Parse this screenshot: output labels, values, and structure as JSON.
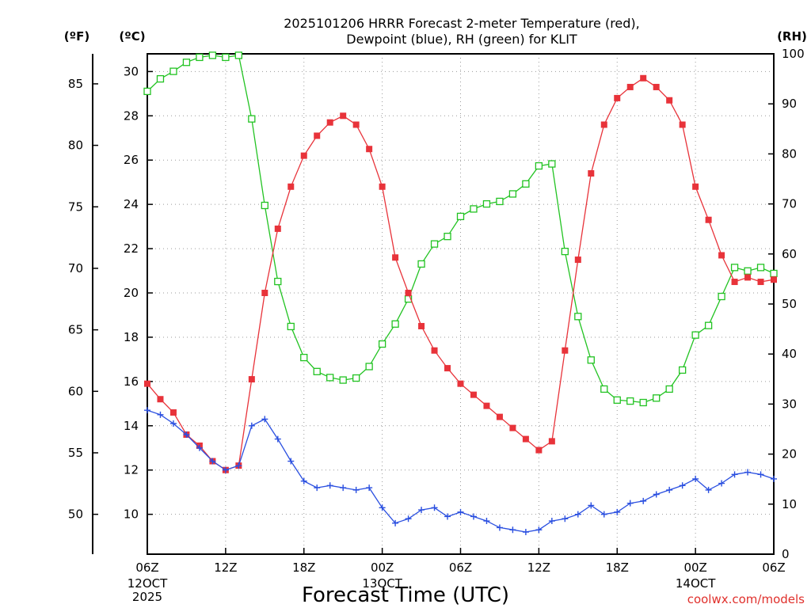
{
  "chart_data": {
    "type": "line",
    "title_line1": "2025101206 HRRR Forecast 2-meter Temperature (red),",
    "title_line2": "Dewpoint (blue), RH (green) for KLIT",
    "xlabel": "Forecast Time (UTC)",
    "credit": "coolwx.com/models",
    "units": {
      "fahrenheit": "(ºF)",
      "celsius": "(ºC)",
      "rh": "(RH)"
    },
    "x_hours_range": [
      0,
      48
    ],
    "celsius_range": [
      8.2,
      30.8
    ],
    "rh_range": [
      0,
      100
    ],
    "fahrenheit_ticks": [
      "85",
      "80",
      "75",
      "70",
      "65",
      "60",
      "55",
      "50"
    ],
    "celsius_ticks": [
      "30",
      "28",
      "26",
      "24",
      "22",
      "20",
      "18",
      "16",
      "14",
      "12",
      "10"
    ],
    "rh_ticks": [
      "100",
      "90",
      "80",
      "70",
      "60",
      "50",
      "40",
      "30",
      "20",
      "10",
      "0"
    ],
    "x_ticks": [
      {
        "hour": 0,
        "label": "06Z",
        "sub1": "12OCT",
        "sub2": "2025"
      },
      {
        "hour": 6,
        "label": "12Z"
      },
      {
        "hour": 12,
        "label": "18Z"
      },
      {
        "hour": 18,
        "label": "00Z",
        "sub1": "13OCT"
      },
      {
        "hour": 24,
        "label": "06Z"
      },
      {
        "hour": 30,
        "label": "12Z"
      },
      {
        "hour": 36,
        "label": "18Z"
      },
      {
        "hour": 42,
        "label": "00Z",
        "sub1": "14OCT"
      },
      {
        "hour": 48,
        "label": "06Z"
      }
    ],
    "series": [
      {
        "name": "Temperature",
        "unit": "C",
        "color": "#e8333a",
        "marker": "filled-square",
        "values": [
          15.9,
          15.2,
          14.6,
          13.6,
          13.1,
          12.4,
          12.0,
          12.2,
          16.1,
          20.0,
          22.9,
          24.8,
          26.2,
          27.1,
          27.7,
          28.0,
          27.6,
          26.5,
          24.8,
          21.6,
          20.0,
          18.5,
          17.4,
          16.6,
          15.9,
          15.4,
          14.9,
          14.4,
          13.9,
          13.4,
          12.9,
          13.3,
          17.4,
          21.5,
          25.4,
          27.6,
          28.8,
          29.3,
          29.7,
          29.3,
          28.7,
          27.6,
          24.8,
          23.3,
          21.7,
          20.5,
          20.7,
          20.5,
          20.6
        ]
      },
      {
        "name": "Dewpoint",
        "unit": "C",
        "color": "#2a4fe0",
        "marker": "plus",
        "values": [
          14.7,
          14.5,
          14.1,
          13.6,
          13.0,
          12.4,
          12.0,
          12.2,
          14.0,
          14.3,
          13.4,
          12.4,
          11.5,
          11.2,
          11.3,
          11.2,
          11.1,
          11.2,
          10.3,
          9.6,
          9.8,
          10.2,
          10.3,
          9.9,
          10.1,
          9.9,
          9.7,
          9.4,
          9.3,
          9.2,
          9.3,
          9.7,
          9.8,
          10.0,
          10.4,
          10.0,
          10.1,
          10.5,
          10.6,
          10.9,
          11.1,
          11.3,
          11.6,
          11.1,
          11.4,
          11.8,
          11.9,
          11.8,
          11.6
        ]
      },
      {
        "name": "RH",
        "unit": "%",
        "color": "#22c322",
        "marker": "open-square",
        "values": [
          92.5,
          95.0,
          96.5,
          98.3,
          99.3,
          99.7,
          99.3,
          99.7,
          87.0,
          69.7,
          54.5,
          45.5,
          39.3,
          36.5,
          35.3,
          34.8,
          35.2,
          37.5,
          42.0,
          46.0,
          51.0,
          58.0,
          62.0,
          63.5,
          67.5,
          69.0,
          70.0,
          70.5,
          72.0,
          74.0,
          77.6,
          78.0,
          60.5,
          47.5,
          38.8,
          33.0,
          30.8,
          30.6,
          30.3,
          31.2,
          33.0,
          36.8,
          43.8,
          45.7,
          51.5,
          57.3,
          56.6,
          57.3,
          56.1
        ]
      }
    ]
  }
}
